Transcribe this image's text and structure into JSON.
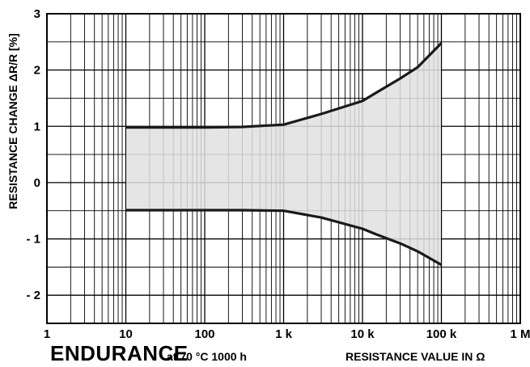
{
  "footer": {
    "title": "ENDURANCE",
    "subtitle": "at 70 °C 1000 h",
    "xlabel": "RESISTANCE VALUE IN Ω"
  },
  "colors": {
    "band_fill": "#e0e0e0",
    "grid": "#000000",
    "boundary": "#1a1a1a"
  },
  "chart_data": {
    "type": "area",
    "title": "ENDURANCE at 70 °C 1000 h",
    "xlabel": "RESISTANCE VALUE IN Ω",
    "ylabel": "RESISTANCE CHANGE ΔR/R [%]",
    "x_scale": "log",
    "xlim": [
      1,
      1000000
    ],
    "ylim": [
      -2.5,
      3
    ],
    "grid": true,
    "x_ticks": [
      {
        "value": 1,
        "label": "1"
      },
      {
        "value": 10,
        "label": "10"
      },
      {
        "value": 100,
        "label": "100"
      },
      {
        "value": 1000,
        "label": "1 k"
      },
      {
        "value": 10000,
        "label": "10 k"
      },
      {
        "value": 100000,
        "label": "100 k"
      },
      {
        "value": 1000000,
        "label": "1 M"
      }
    ],
    "y_ticks": [
      {
        "value": 3,
        "label": "3"
      },
      {
        "value": 2,
        "label": "2"
      },
      {
        "value": 1,
        "label": "1"
      },
      {
        "value": 0,
        "label": "0"
      },
      {
        "value": -1,
        "label": "- 1"
      },
      {
        "value": -2,
        "label": "- 2"
      }
    ],
    "series": [
      {
        "x": [
          10,
          100,
          300,
          1000,
          3000,
          10000,
          15000,
          30000,
          50000,
          100000
        ],
        "values": [
          0.98,
          0.98,
          0.99,
          1.03,
          1.22,
          1.45,
          1.6,
          1.85,
          2.05,
          2.48
        ]
      },
      {
        "x": [
          10,
          100,
          300,
          1000,
          3000,
          10000,
          15000,
          30000,
          50000,
          100000
        ],
        "values": [
          -0.49,
          -0.49,
          -0.49,
          -0.5,
          -0.62,
          -0.82,
          -0.92,
          -1.08,
          -1.22,
          -1.46
        ]
      }
    ]
  }
}
